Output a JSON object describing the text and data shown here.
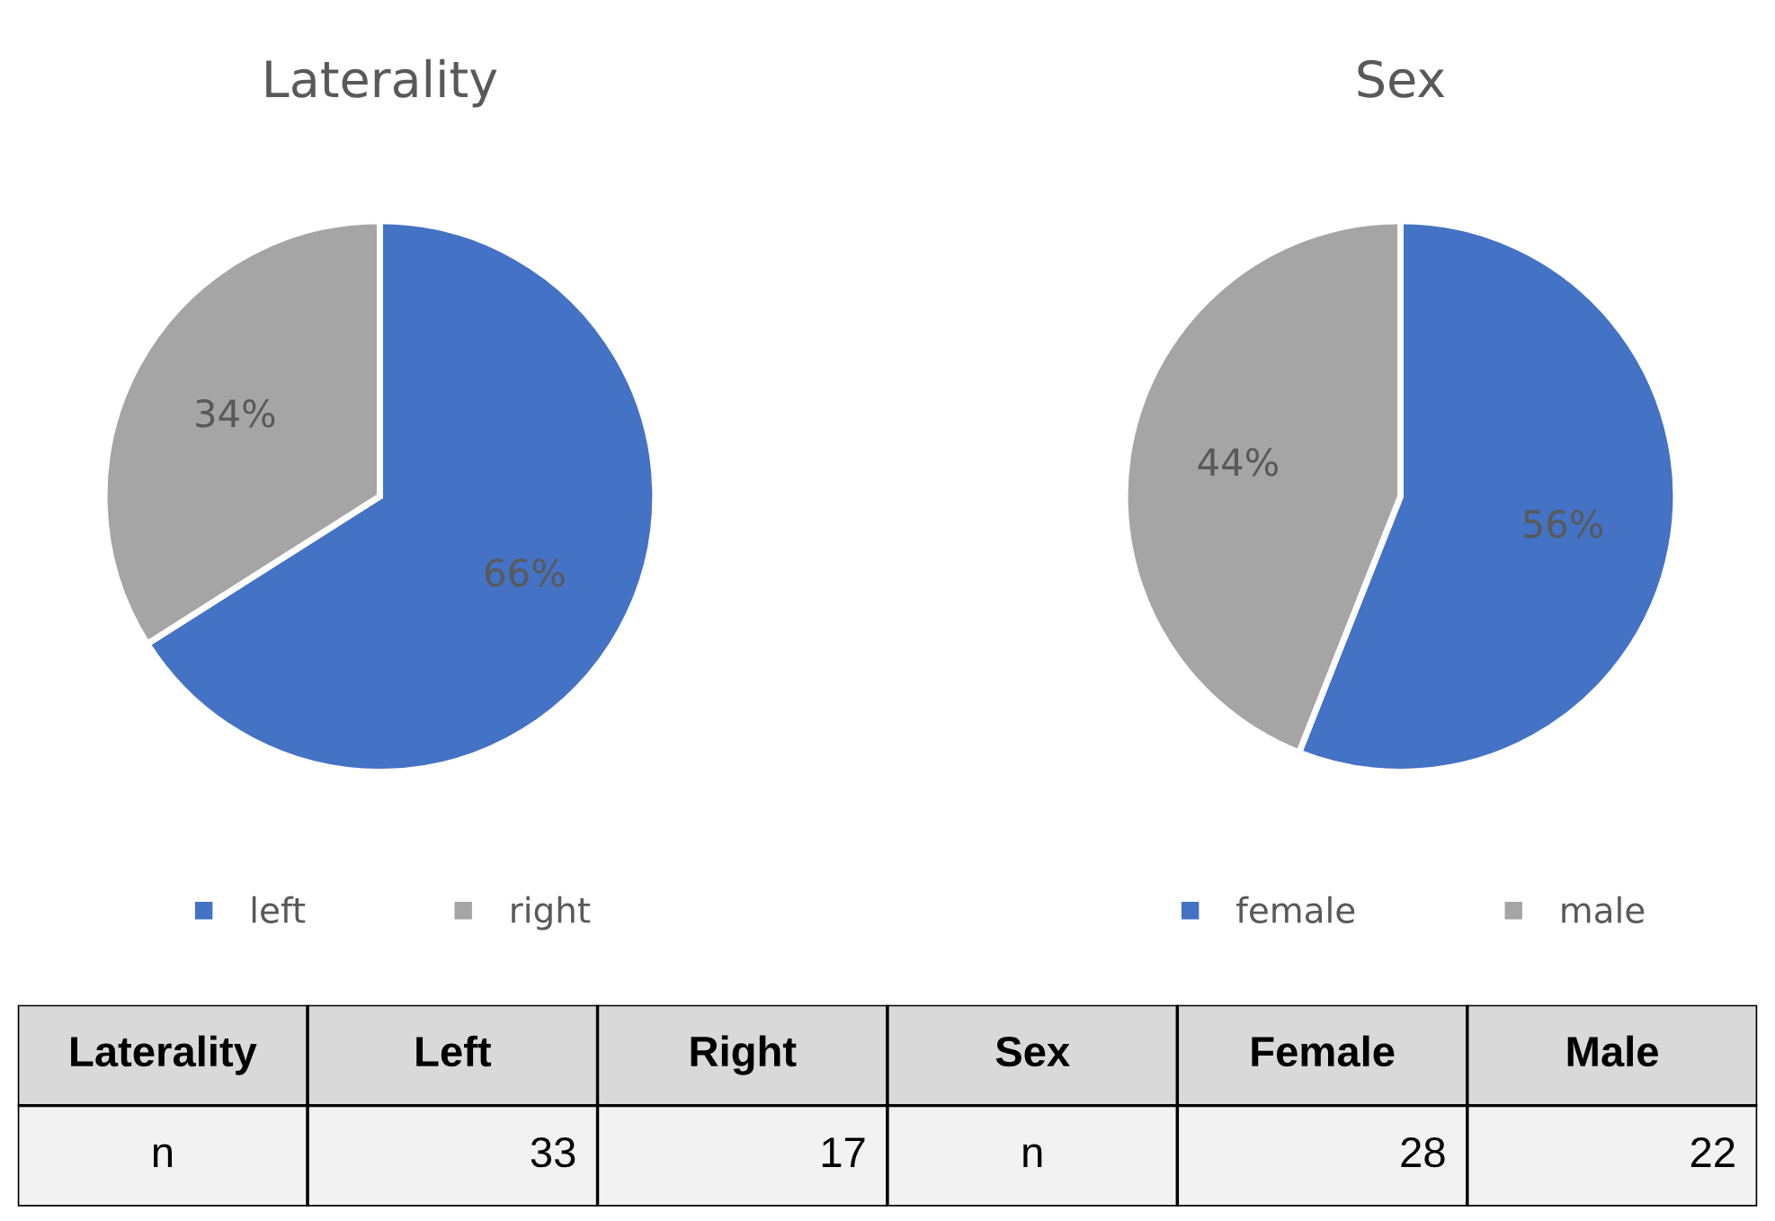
{
  "chart_data": [
    {
      "type": "pie",
      "title": "Laterality",
      "categories": [
        "left",
        "right"
      ],
      "values": [
        66,
        34
      ],
      "value_labels": [
        "66%",
        "34%"
      ],
      "colors": [
        "#4472c4",
        "#a5a5a5"
      ],
      "legend": "bottom"
    },
    {
      "type": "pie",
      "title": "Sex",
      "categories": [
        "female",
        "male"
      ],
      "values": [
        56,
        44
      ],
      "value_labels": [
        "56%",
        "44%"
      ],
      "colors": [
        "#4472c4",
        "#a5a5a5"
      ],
      "legend": "bottom"
    },
    {
      "type": "other",
      "annotations": [
        "Laterality",
        "Left",
        "Right",
        "Sex",
        "Female",
        "Male",
        "n",
        "33",
        "17",
        "n",
        "28",
        "22"
      ]
    }
  ]
}
